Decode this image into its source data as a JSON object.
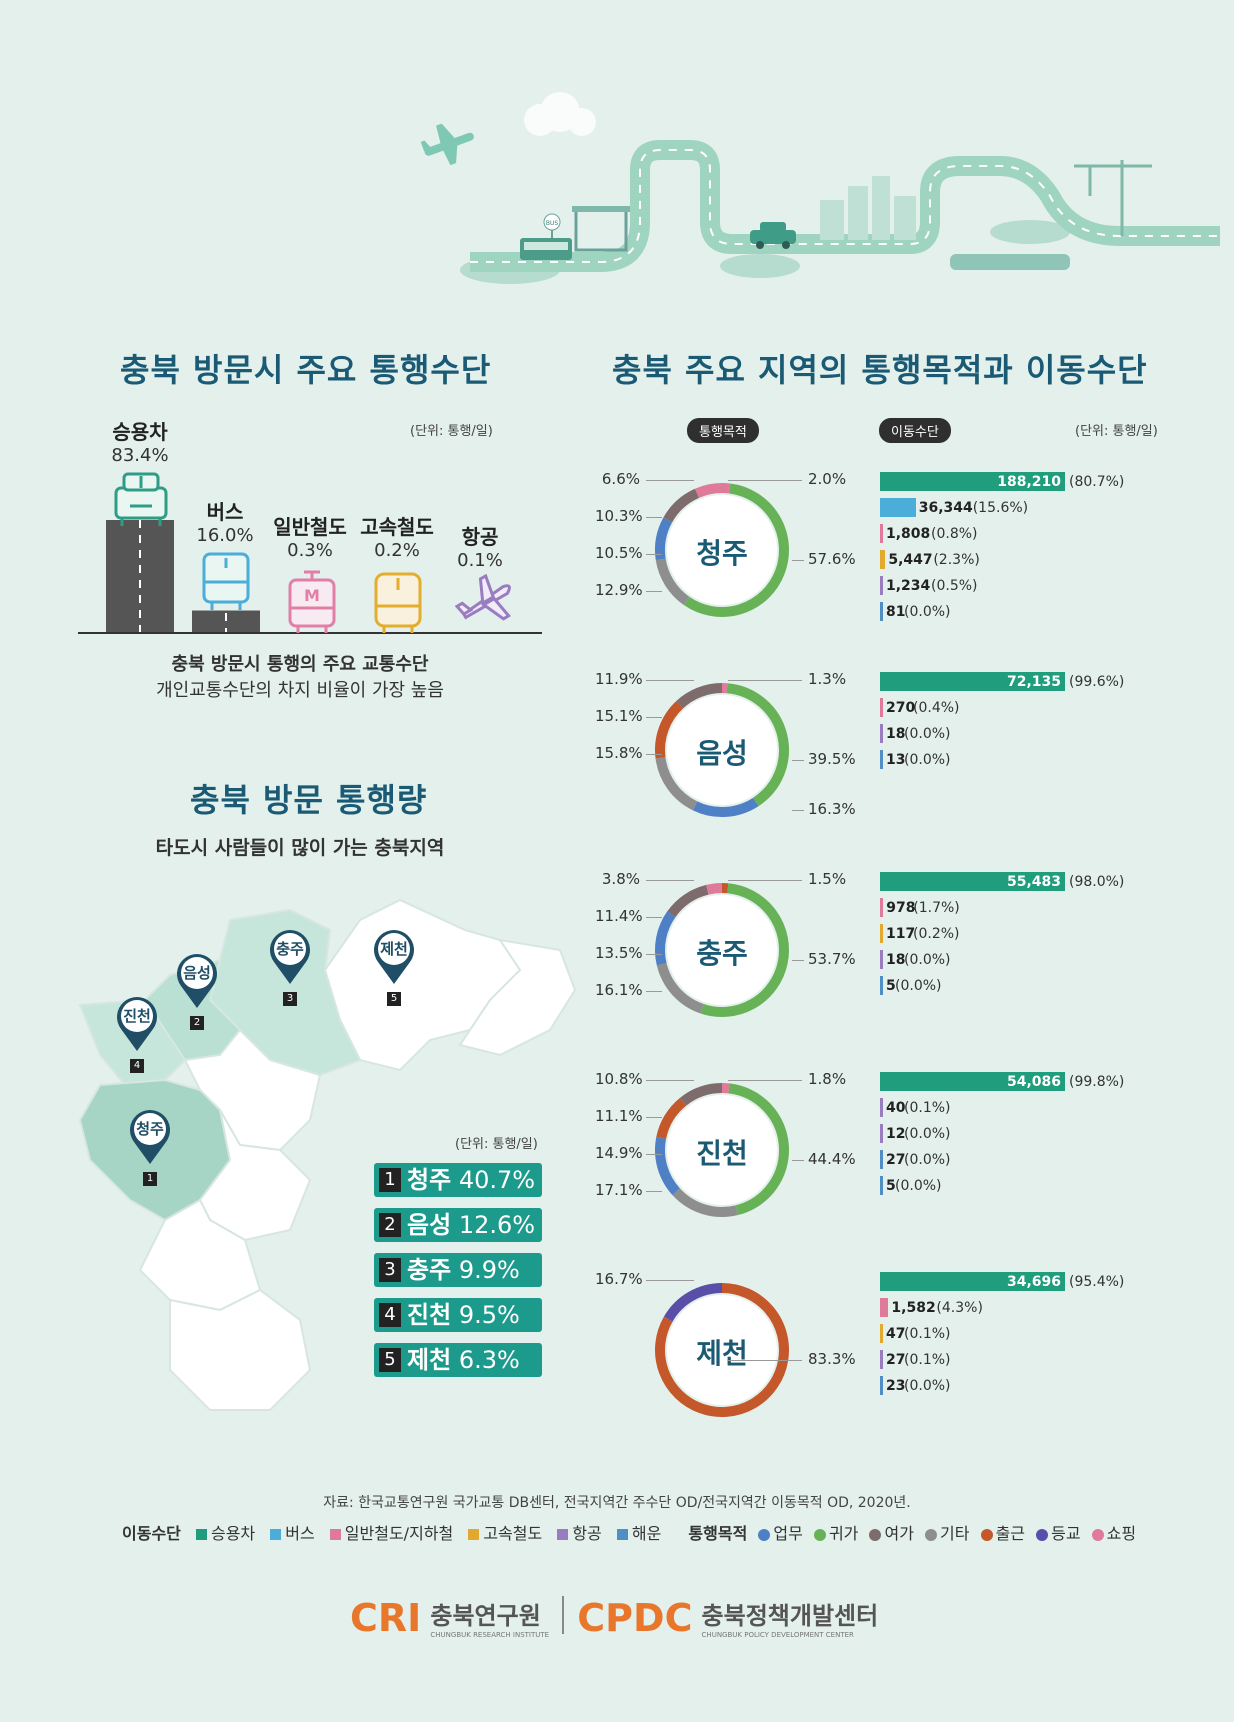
{
  "header_scene": {
    "bus_stop_sign": "BUS"
  },
  "left_section": {
    "title": "충북 방문시 주요 통행수단",
    "unit": "(단위: 통행/일)",
    "caption_bold": "충북 방문시 통행의 주요 교통수단",
    "caption": "개인교통수단의 차지 비율이 가장 높음"
  },
  "vehicles": [
    {
      "name": "승용차",
      "pct": "83.4%",
      "share": 83.4,
      "icon": "car-icon",
      "color": "#2f9d85"
    },
    {
      "name": "버스",
      "pct": "16.0%",
      "share": 16.0,
      "icon": "bus-icon",
      "color": "#4aaed8"
    },
    {
      "name": "일반철도",
      "pct": "0.3%",
      "share": 0.3,
      "icon": "subway-icon",
      "color": "#e080a8",
      "icon_letter": "M"
    },
    {
      "name": "고속철도",
      "pct": "0.2%",
      "share": 0.2,
      "icon": "train-icon",
      "color": "#e3ad2e"
    },
    {
      "name": "항공",
      "pct": "0.1%",
      "share": 0.1,
      "icon": "airplane-icon",
      "color": "#9a7cc0"
    }
  ],
  "volume_section": {
    "title": "충북 방문 통행량",
    "subtitle": "타도시 사람들이 많이 가는 충북지역",
    "unit": "(단위: 통행/일)"
  },
  "ranking": [
    {
      "rank": "1",
      "name": "청주",
      "pct": "40.7%"
    },
    {
      "rank": "2",
      "name": "음성",
      "pct": "12.6%"
    },
    {
      "rank": "3",
      "name": "충주",
      "pct": "9.9%"
    },
    {
      "rank": "4",
      "name": "진천",
      "pct": "9.5%"
    },
    {
      "rank": "5",
      "name": "제천",
      "pct": "6.3%"
    }
  ],
  "map_pins": [
    {
      "name": "청주",
      "rank": "1"
    },
    {
      "name": "음성",
      "rank": "2"
    },
    {
      "name": "충주",
      "rank": "3"
    },
    {
      "name": "진천",
      "rank": "4"
    },
    {
      "name": "제천",
      "rank": "5"
    }
  ],
  "right_section": {
    "title": "충북 주요 지역의 통행목적과 이동수단",
    "purpose_pill": "통행목적",
    "mode_pill": "이동수단",
    "unit": "(단위: 통행/일)"
  },
  "purpose_colors": {
    "업무": "#4f7fc4",
    "귀가": "#67b256",
    "여가": "#7d6c6b",
    "기타": "#8e8e8e",
    "출근": "#c4582a",
    "등교": "#5a4fa8",
    "쇼핑": "#e07a9a"
  },
  "mode_colors": {
    "승용차": "#1f9d7c",
    "버스": "#4aaed8",
    "일반철도/지하철": "#e07a9a",
    "고속철도": "#e3a82e",
    "항공": "#9a7cc0",
    "해운": "#4f8fc4"
  },
  "chart_data": [
    {
      "type": "donut",
      "region": "청주",
      "series": [
        {
          "name": "쇼핑",
          "value": 2.0
        },
        {
          "name": "귀가",
          "value": 57.6
        },
        {
          "name": "기타",
          "value": 12.9
        },
        {
          "name": "업무",
          "value": 10.5
        },
        {
          "name": "여가",
          "value": 10.3
        },
        {
          "name": "쇼핑",
          "value": 6.6
        }
      ],
      "labels": {
        "left": [
          "6.6%",
          "10.3%",
          "10.5%",
          "12.9%"
        ],
        "right": [
          "2.0%",
          "57.6%"
        ]
      },
      "modes": [
        {
          "mode": "승용차",
          "value": 188210,
          "label": "188,210",
          "pct": "(80.7%)"
        },
        {
          "mode": "버스",
          "value": 36344,
          "label": "36,344",
          "pct": "(15.6%)"
        },
        {
          "mode": "일반철도/지하철",
          "value": 1808,
          "label": "1,808",
          "pct": "(0.8%)"
        },
        {
          "mode": "고속철도",
          "value": 5447,
          "label": "5,447",
          "pct": "(2.3%)"
        },
        {
          "mode": "항공",
          "value": 1234,
          "label": "1,234",
          "pct": "(0.5%)"
        },
        {
          "mode": "해운",
          "value": 81,
          "label": "81",
          "pct": "(0.0%)"
        }
      ]
    },
    {
      "type": "donut",
      "region": "음성",
      "series": [
        {
          "name": "쇼핑",
          "value": 1.3
        },
        {
          "name": "귀가",
          "value": 39.5
        },
        {
          "name": "업무",
          "value": 16.3
        },
        {
          "name": "기타",
          "value": 15.8
        },
        {
          "name": "출근",
          "value": 15.1
        },
        {
          "name": "여가",
          "value": 11.9
        }
      ],
      "labels": {
        "left": [
          "11.9%",
          "15.1%",
          "15.8%"
        ],
        "right": [
          "1.3%",
          "39.5%",
          "16.3%"
        ]
      },
      "modes": [
        {
          "mode": "승용차",
          "value": 72135,
          "label": "72,135",
          "pct": "(99.6%)"
        },
        {
          "mode": "일반철도/지하철",
          "value": 270,
          "label": "270",
          "pct": "(0.4%)"
        },
        {
          "mode": "항공",
          "value": 18,
          "label": "18",
          "pct": "(0.0%)"
        },
        {
          "mode": "해운",
          "value": 13,
          "label": "13",
          "pct": "(0.0%)"
        }
      ]
    },
    {
      "type": "donut",
      "region": "충주",
      "series": [
        {
          "name": "출근",
          "value": 1.5
        },
        {
          "name": "귀가",
          "value": 53.7
        },
        {
          "name": "기타",
          "value": 16.1
        },
        {
          "name": "업무",
          "value": 13.5
        },
        {
          "name": "여가",
          "value": 11.4
        },
        {
          "name": "쇼핑",
          "value": 3.8
        }
      ],
      "labels": {
        "left": [
          "3.8%",
          "11.4%",
          "13.5%",
          "16.1%"
        ],
        "right": [
          "1.5%",
          "53.7%"
        ]
      },
      "modes": [
        {
          "mode": "승용차",
          "value": 55483,
          "label": "55,483",
          "pct": "(98.0%)"
        },
        {
          "mode": "일반철도/지하철",
          "value": 978,
          "label": "978",
          "pct": "(1.7%)"
        },
        {
          "mode": "고속철도",
          "value": 117,
          "label": "117",
          "pct": "(0.2%)"
        },
        {
          "mode": "항공",
          "value": 18,
          "label": "18",
          "pct": "(0.0%)"
        },
        {
          "mode": "해운",
          "value": 5,
          "label": "5",
          "pct": "(0.0%)"
        }
      ]
    },
    {
      "type": "donut",
      "region": "진천",
      "series": [
        {
          "name": "쇼핑",
          "value": 1.8
        },
        {
          "name": "귀가",
          "value": 44.4
        },
        {
          "name": "기타",
          "value": 17.1
        },
        {
          "name": "업무",
          "value": 14.9
        },
        {
          "name": "출근",
          "value": 11.1
        },
        {
          "name": "여가",
          "value": 10.8
        }
      ],
      "labels": {
        "left": [
          "10.8%",
          "11.1%",
          "14.9%",
          "17.1%"
        ],
        "right": [
          "1.8%",
          "44.4%"
        ]
      },
      "modes": [
        {
          "mode": "승용차",
          "value": 54086,
          "label": "54,086",
          "pct": "(99.8%)"
        },
        {
          "mode": "항공",
          "value": 40,
          "label": "40",
          "pct": "(0.1%)"
        },
        {
          "mode": "항공",
          "value": 12,
          "label": "12",
          "pct": "(0.0%)"
        },
        {
          "mode": "해운",
          "value": 27,
          "label": "27",
          "pct": "(0.0%)"
        },
        {
          "mode": "해운",
          "value": 5,
          "label": "5",
          "pct": "(0.0%)"
        }
      ]
    },
    {
      "type": "donut",
      "region": "제천",
      "series": [
        {
          "name": "출근",
          "value": 83.3
        },
        {
          "name": "등교",
          "value": 16.7
        }
      ],
      "labels": {
        "left": [
          "16.7%"
        ],
        "right": [
          "83.3%"
        ]
      },
      "modes": [
        {
          "mode": "승용차",
          "value": 34696,
          "label": "34,696",
          "pct": "(95.4%)"
        },
        {
          "mode": "일반철도/지하철",
          "value": 1582,
          "label": "1,582",
          "pct": "(4.3%)"
        },
        {
          "mode": "고속철도",
          "value": 47,
          "label": "47",
          "pct": "(0.1%)"
        },
        {
          "mode": "항공",
          "value": 27,
          "label": "27",
          "pct": "(0.1%)"
        },
        {
          "mode": "해운",
          "value": 23,
          "label": "23",
          "pct": "(0.0%)"
        }
      ]
    }
  ],
  "footer": {
    "source": "자료: 한국교통연구원 국가교통 DB센터, 전국지역간 주수단 OD/전국지역간 이동목적 OD, 2020년.",
    "mode_legend_title": "이동수단",
    "mode_legend": [
      "승용차",
      "버스",
      "일반철도/지하철",
      "고속철도",
      "항공",
      "해운"
    ],
    "purpose_legend_title": "통행목적",
    "purpose_legend": [
      "업무",
      "귀가",
      "여가",
      "기타",
      "출근",
      "등교",
      "쇼핑"
    ],
    "cri_logo": "CRI",
    "cri_name": "충북연구원",
    "cri_en": "CHUNGBUK RESEARCH INSTITUTE",
    "cpdc_logo": "CPDC",
    "cpdc_name": "충북정책개발센터",
    "cpdc_en": "CHUNGBUK POLICY DEVELOPMENT CENTER"
  }
}
